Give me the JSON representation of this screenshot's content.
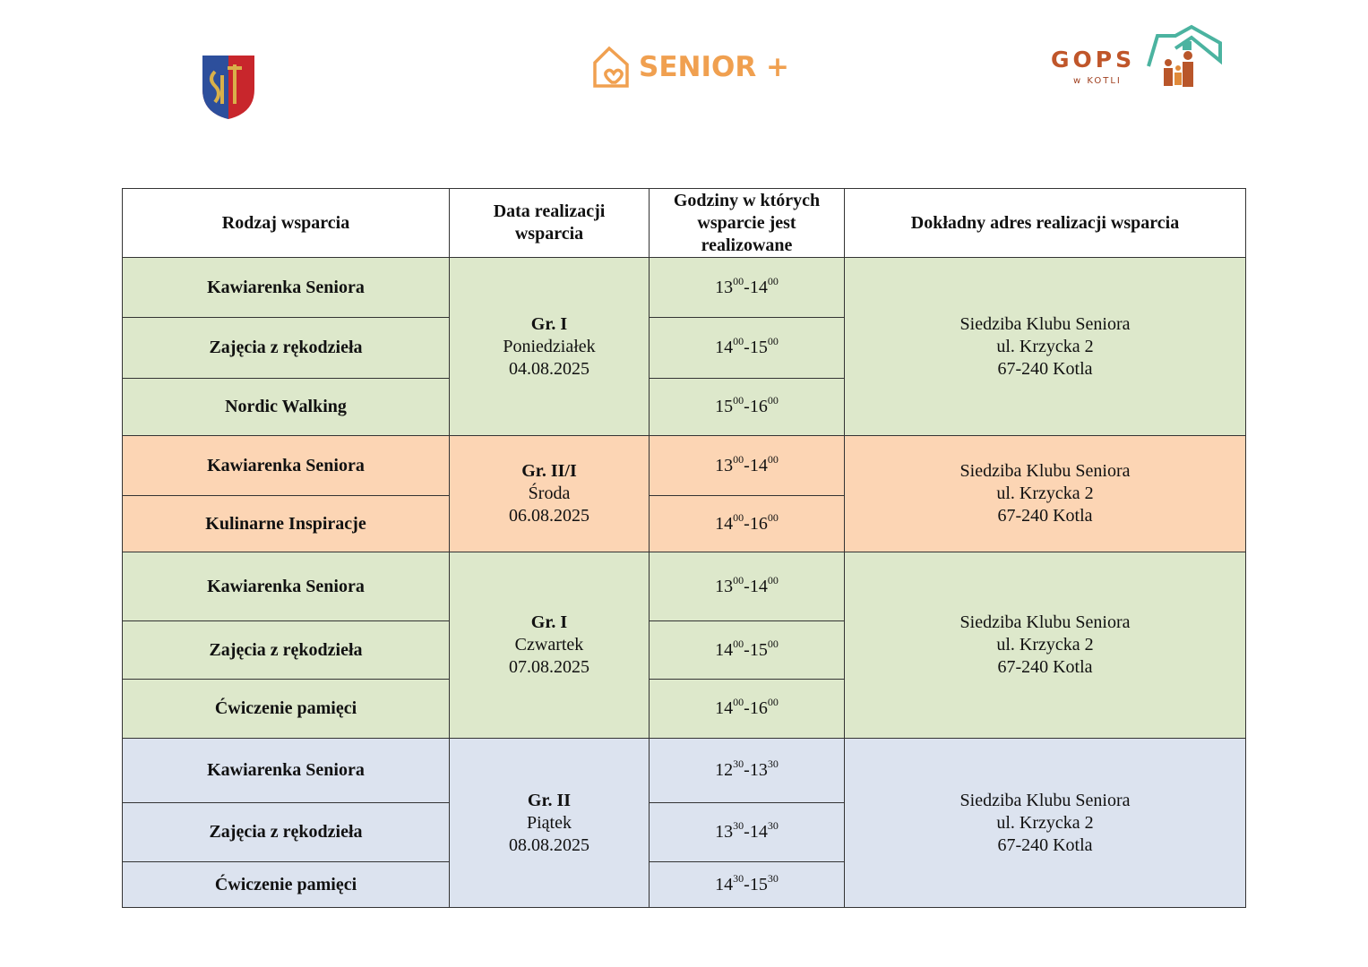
{
  "header": {
    "senior_logo": "SENIOR +",
    "gops_logo": "GOPS",
    "gops_sub": "w KOTLI"
  },
  "table": {
    "columns": [
      "Rodzaj wsparcia",
      "Data realizacji wsparcia",
      "Godziny w których wsparcie jest realizowane",
      "Dokładny adres realizacji wsparcia"
    ],
    "groups": [
      {
        "group": "Gr. I",
        "day": "Poniedziałek",
        "date": "04.08.2025",
        "color": "#dde8cb",
        "address": [
          "Siedziba Klubu Seniora",
          "ul. Krzycka 2",
          "67-240 Kotla"
        ],
        "rows": [
          {
            "activity": "Kawiarenka Seniora",
            "time": {
              "from_h": "13",
              "from_m": "00",
              "dash": "-",
              "to_h": "14",
              "to_m": "00"
            }
          },
          {
            "activity": "Zajęcia z rękodzieła",
            "time": {
              "from_h": "14",
              "from_m": "00",
              "dash": "-",
              "to_h": "15",
              "to_m": "00"
            }
          },
          {
            "activity": "Nordic Walking",
            "time": {
              "from_h": "15",
              "from_m": "00",
              "dash": "-",
              "to_h": "16",
              "to_m": "00"
            }
          }
        ]
      },
      {
        "group": "Gr. II/I",
        "day": "Środa",
        "date": "06.08.2025",
        "color": "#fcd5b4",
        "address": [
          "Siedziba Klubu Seniora",
          "ul. Krzycka 2",
          "67-240 Kotla"
        ],
        "rows": [
          {
            "activity": "Kawiarenka Seniora",
            "time": {
              "from_h": "13",
              "from_m": "00",
              "dash": "-",
              "to_h": "14",
              "to_m": "00"
            }
          },
          {
            "activity": "Kulinarne Inspiracje",
            "time": {
              "from_h": "14",
              "from_m": "00",
              "dash": "-",
              "to_h": "16",
              "to_m": "00"
            }
          }
        ]
      },
      {
        "group": "Gr. I",
        "day": "Czwartek",
        "date": "07.08.2025",
        "color": "#dde8cb",
        "address": [
          "Siedziba Klubu Seniora",
          "ul. Krzycka 2",
          "67-240 Kotla"
        ],
        "rows": [
          {
            "activity": "Kawiarenka Seniora",
            "time": {
              "from_h": "13",
              "from_m": "00",
              "dash": "-",
              "to_h": "14",
              "to_m": "00"
            }
          },
          {
            "activity": "Zajęcia z rękodzieła",
            "time": {
              "from_h": "14",
              "from_m": "00",
              "dash": "-",
              "to_h": "15",
              "to_m": "00"
            }
          },
          {
            "activity": "Ćwiczenie pamięci",
            "time": {
              "from_h": "14",
              "from_m": "00",
              "dash": "-",
              "to_h": "16",
              "to_m": "00"
            }
          }
        ]
      },
      {
        "group": "Gr. II",
        "day": "Piątek",
        "date": "08.08.2025",
        "color": "#dce3ef",
        "address": [
          "Siedziba Klubu Seniora",
          "ul. Krzycka 2",
          "67-240 Kotla"
        ],
        "rows": [
          {
            "activity": "Kawiarenka Seniora",
            "time": {
              "from_h": "12",
              "from_m": "30",
              "dash": "-",
              "to_h": "13",
              "to_m": "30"
            }
          },
          {
            "activity": "Zajęcia z rękodzieła",
            "time": {
              "from_h": "13",
              "from_m": "30",
              "dash": "-",
              "to_h": "14",
              "to_m": "30"
            }
          },
          {
            "activity": "Ćwiczenie pamięci",
            "time": {
              "from_h": "14",
              "from_m": "30",
              "dash": "-",
              "to_h": "15",
              "to_m": "30"
            }
          }
        ]
      }
    ]
  }
}
